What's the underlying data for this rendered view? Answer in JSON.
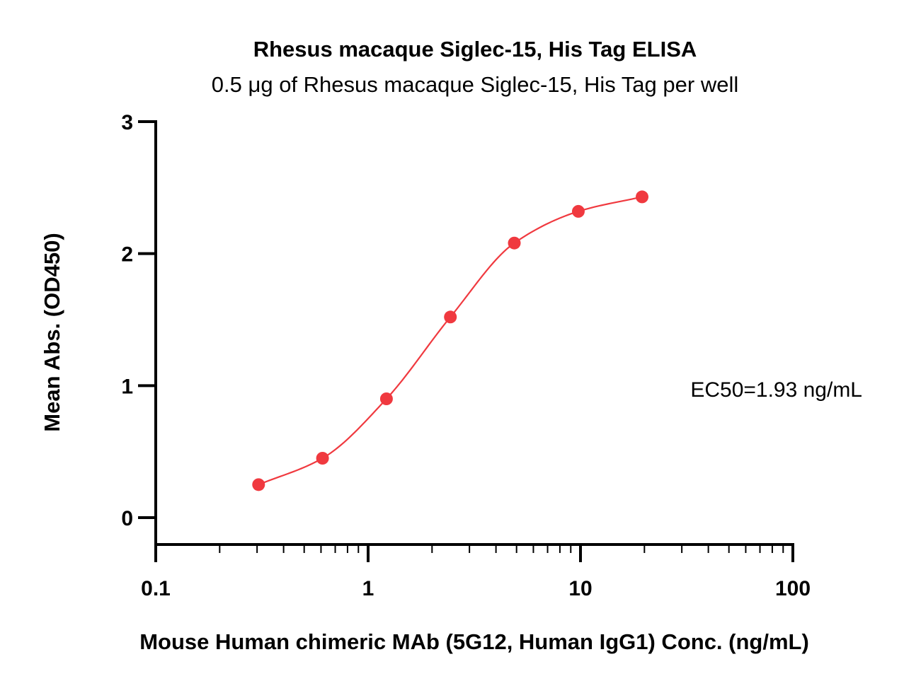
{
  "chart_data": {
    "type": "scatter",
    "title": "Rhesus macaque Siglec-15, His Tag ELISA",
    "subtitle": "0.5 μg of Rhesus macaque Siglec-15, His Tag per well",
    "xlabel": "Mouse Human chimeric MAb (5G12, Human IgG1) Conc. (ng/mL)",
    "ylabel": "Mean Abs. (OD450)",
    "x_scale": "log",
    "xlim": [
      0.1,
      100
    ],
    "ylim": [
      -0.2,
      3
    ],
    "x_ticks": [
      {
        "value": 0.1,
        "label": "0.1"
      },
      {
        "value": 1,
        "label": "1"
      },
      {
        "value": 10,
        "label": "10"
      },
      {
        "value": 100,
        "label": "100"
      }
    ],
    "y_ticks": [
      {
        "value": 0,
        "label": "0"
      },
      {
        "value": 1,
        "label": "1"
      },
      {
        "value": 2,
        "label": "2"
      },
      {
        "value": 3,
        "label": "3"
      }
    ],
    "grid": false,
    "color": "#f0393f",
    "series": [
      {
        "x": [
          0.305,
          0.61,
          1.22,
          2.44,
          4.88,
          9.77,
          19.5
        ],
        "y": [
          0.25,
          0.45,
          0.9,
          1.52,
          2.08,
          2.32,
          2.43
        ],
        "fit": "4PL"
      }
    ],
    "annotation": "EC50=1.93 ng/mL"
  }
}
